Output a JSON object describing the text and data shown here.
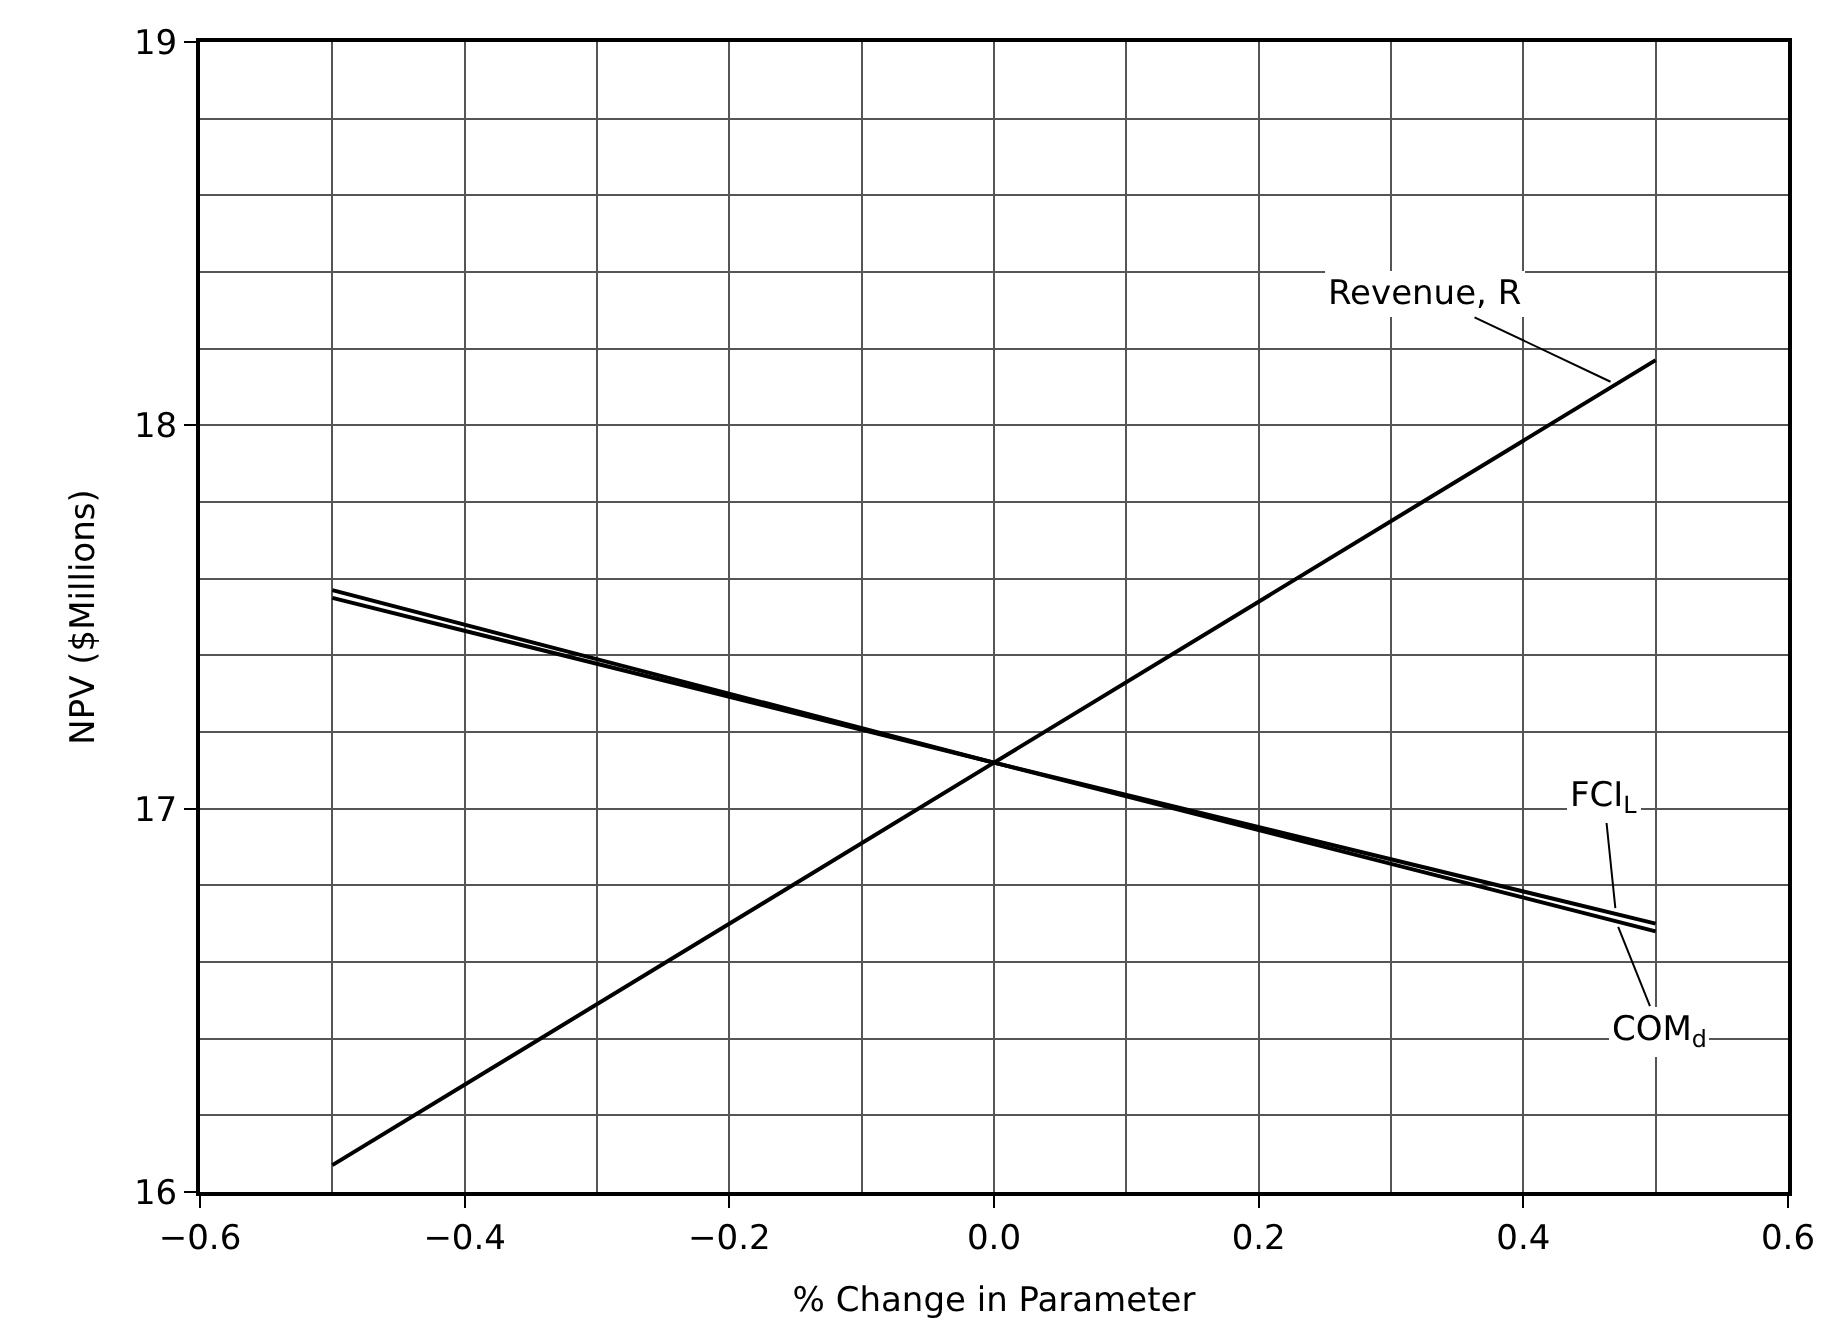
{
  "chart_data": {
    "type": "line",
    "xlabel": "% Change in Parameter",
    "ylabel": "NPV ($Millions)",
    "x": [
      -0.5,
      0.0,
      0.5
    ],
    "series": [
      {
        "name": "Revenue, R",
        "color": "#000000",
        "values": [
          16.07,
          17.12,
          18.17
        ]
      },
      {
        "name": "FCI$_{L}$",
        "color": "#000000",
        "values": [
          17.57,
          17.12,
          16.7
        ]
      },
      {
        "name": "COM$_{d}$",
        "color": "#000000",
        "values": [
          17.55,
          17.12,
          16.68
        ]
      }
    ],
    "xlim": [
      -0.6,
      0.6
    ],
    "xticks": [
      {
        "value": -0.6,
        "label": "−0.6"
      },
      {
        "value": -0.4,
        "label": "−0.4"
      },
      {
        "value": -0.2,
        "label": "−0.2"
      },
      {
        "value": 0.0,
        "label": "0.0"
      },
      {
        "value": 0.2,
        "label": "0.2"
      },
      {
        "value": 0.4,
        "label": "0.4"
      },
      {
        "value": 0.6,
        "label": "0.6"
      }
    ],
    "ylim": [
      16,
      19
    ],
    "yticks": [
      16,
      17,
      18,
      19
    ],
    "grid": true,
    "legend": false,
    "marker": "none",
    "line_style": "solid"
  }
}
